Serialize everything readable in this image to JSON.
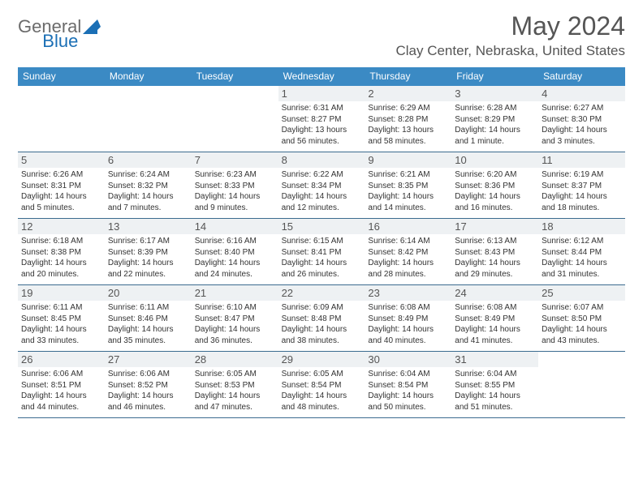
{
  "logo": {
    "text1": "General",
    "text2": "Blue",
    "brand_color": "#1b6fb5",
    "text_color": "#6b6b6b"
  },
  "header": {
    "title": "May 2024",
    "location": "Clay Center, Nebraska, United States"
  },
  "weekdays": [
    "Sunday",
    "Monday",
    "Tuesday",
    "Wednesday",
    "Thursday",
    "Friday",
    "Saturday"
  ],
  "colors": {
    "header_bg": "#3b8ac4",
    "row_border": "#3b6b8f",
    "daynum_bg": "#eef1f3",
    "text": "#333333",
    "title_text": "#555555"
  },
  "weeks": [
    [
      null,
      null,
      null,
      {
        "n": "1",
        "sr": "Sunrise: 6:31 AM",
        "ss": "Sunset: 8:27 PM",
        "dl1": "Daylight: 13 hours",
        "dl2": "and 56 minutes."
      },
      {
        "n": "2",
        "sr": "Sunrise: 6:29 AM",
        "ss": "Sunset: 8:28 PM",
        "dl1": "Daylight: 13 hours",
        "dl2": "and 58 minutes."
      },
      {
        "n": "3",
        "sr": "Sunrise: 6:28 AM",
        "ss": "Sunset: 8:29 PM",
        "dl1": "Daylight: 14 hours",
        "dl2": "and 1 minute."
      },
      {
        "n": "4",
        "sr": "Sunrise: 6:27 AM",
        "ss": "Sunset: 8:30 PM",
        "dl1": "Daylight: 14 hours",
        "dl2": "and 3 minutes."
      }
    ],
    [
      {
        "n": "5",
        "sr": "Sunrise: 6:26 AM",
        "ss": "Sunset: 8:31 PM",
        "dl1": "Daylight: 14 hours",
        "dl2": "and 5 minutes."
      },
      {
        "n": "6",
        "sr": "Sunrise: 6:24 AM",
        "ss": "Sunset: 8:32 PM",
        "dl1": "Daylight: 14 hours",
        "dl2": "and 7 minutes."
      },
      {
        "n": "7",
        "sr": "Sunrise: 6:23 AM",
        "ss": "Sunset: 8:33 PM",
        "dl1": "Daylight: 14 hours",
        "dl2": "and 9 minutes."
      },
      {
        "n": "8",
        "sr": "Sunrise: 6:22 AM",
        "ss": "Sunset: 8:34 PM",
        "dl1": "Daylight: 14 hours",
        "dl2": "and 12 minutes."
      },
      {
        "n": "9",
        "sr": "Sunrise: 6:21 AM",
        "ss": "Sunset: 8:35 PM",
        "dl1": "Daylight: 14 hours",
        "dl2": "and 14 minutes."
      },
      {
        "n": "10",
        "sr": "Sunrise: 6:20 AM",
        "ss": "Sunset: 8:36 PM",
        "dl1": "Daylight: 14 hours",
        "dl2": "and 16 minutes."
      },
      {
        "n": "11",
        "sr": "Sunrise: 6:19 AM",
        "ss": "Sunset: 8:37 PM",
        "dl1": "Daylight: 14 hours",
        "dl2": "and 18 minutes."
      }
    ],
    [
      {
        "n": "12",
        "sr": "Sunrise: 6:18 AM",
        "ss": "Sunset: 8:38 PM",
        "dl1": "Daylight: 14 hours",
        "dl2": "and 20 minutes."
      },
      {
        "n": "13",
        "sr": "Sunrise: 6:17 AM",
        "ss": "Sunset: 8:39 PM",
        "dl1": "Daylight: 14 hours",
        "dl2": "and 22 minutes."
      },
      {
        "n": "14",
        "sr": "Sunrise: 6:16 AM",
        "ss": "Sunset: 8:40 PM",
        "dl1": "Daylight: 14 hours",
        "dl2": "and 24 minutes."
      },
      {
        "n": "15",
        "sr": "Sunrise: 6:15 AM",
        "ss": "Sunset: 8:41 PM",
        "dl1": "Daylight: 14 hours",
        "dl2": "and 26 minutes."
      },
      {
        "n": "16",
        "sr": "Sunrise: 6:14 AM",
        "ss": "Sunset: 8:42 PM",
        "dl1": "Daylight: 14 hours",
        "dl2": "and 28 minutes."
      },
      {
        "n": "17",
        "sr": "Sunrise: 6:13 AM",
        "ss": "Sunset: 8:43 PM",
        "dl1": "Daylight: 14 hours",
        "dl2": "and 29 minutes."
      },
      {
        "n": "18",
        "sr": "Sunrise: 6:12 AM",
        "ss": "Sunset: 8:44 PM",
        "dl1": "Daylight: 14 hours",
        "dl2": "and 31 minutes."
      }
    ],
    [
      {
        "n": "19",
        "sr": "Sunrise: 6:11 AM",
        "ss": "Sunset: 8:45 PM",
        "dl1": "Daylight: 14 hours",
        "dl2": "and 33 minutes."
      },
      {
        "n": "20",
        "sr": "Sunrise: 6:11 AM",
        "ss": "Sunset: 8:46 PM",
        "dl1": "Daylight: 14 hours",
        "dl2": "and 35 minutes."
      },
      {
        "n": "21",
        "sr": "Sunrise: 6:10 AM",
        "ss": "Sunset: 8:47 PM",
        "dl1": "Daylight: 14 hours",
        "dl2": "and 36 minutes."
      },
      {
        "n": "22",
        "sr": "Sunrise: 6:09 AM",
        "ss": "Sunset: 8:48 PM",
        "dl1": "Daylight: 14 hours",
        "dl2": "and 38 minutes."
      },
      {
        "n": "23",
        "sr": "Sunrise: 6:08 AM",
        "ss": "Sunset: 8:49 PM",
        "dl1": "Daylight: 14 hours",
        "dl2": "and 40 minutes."
      },
      {
        "n": "24",
        "sr": "Sunrise: 6:08 AM",
        "ss": "Sunset: 8:49 PM",
        "dl1": "Daylight: 14 hours",
        "dl2": "and 41 minutes."
      },
      {
        "n": "25",
        "sr": "Sunrise: 6:07 AM",
        "ss": "Sunset: 8:50 PM",
        "dl1": "Daylight: 14 hours",
        "dl2": "and 43 minutes."
      }
    ],
    [
      {
        "n": "26",
        "sr": "Sunrise: 6:06 AM",
        "ss": "Sunset: 8:51 PM",
        "dl1": "Daylight: 14 hours",
        "dl2": "and 44 minutes."
      },
      {
        "n": "27",
        "sr": "Sunrise: 6:06 AM",
        "ss": "Sunset: 8:52 PM",
        "dl1": "Daylight: 14 hours",
        "dl2": "and 46 minutes."
      },
      {
        "n": "28",
        "sr": "Sunrise: 6:05 AM",
        "ss": "Sunset: 8:53 PM",
        "dl1": "Daylight: 14 hours",
        "dl2": "and 47 minutes."
      },
      {
        "n": "29",
        "sr": "Sunrise: 6:05 AM",
        "ss": "Sunset: 8:54 PM",
        "dl1": "Daylight: 14 hours",
        "dl2": "and 48 minutes."
      },
      {
        "n": "30",
        "sr": "Sunrise: 6:04 AM",
        "ss": "Sunset: 8:54 PM",
        "dl1": "Daylight: 14 hours",
        "dl2": "and 50 minutes."
      },
      {
        "n": "31",
        "sr": "Sunrise: 6:04 AM",
        "ss": "Sunset: 8:55 PM",
        "dl1": "Daylight: 14 hours",
        "dl2": "and 51 minutes."
      },
      null
    ]
  ]
}
